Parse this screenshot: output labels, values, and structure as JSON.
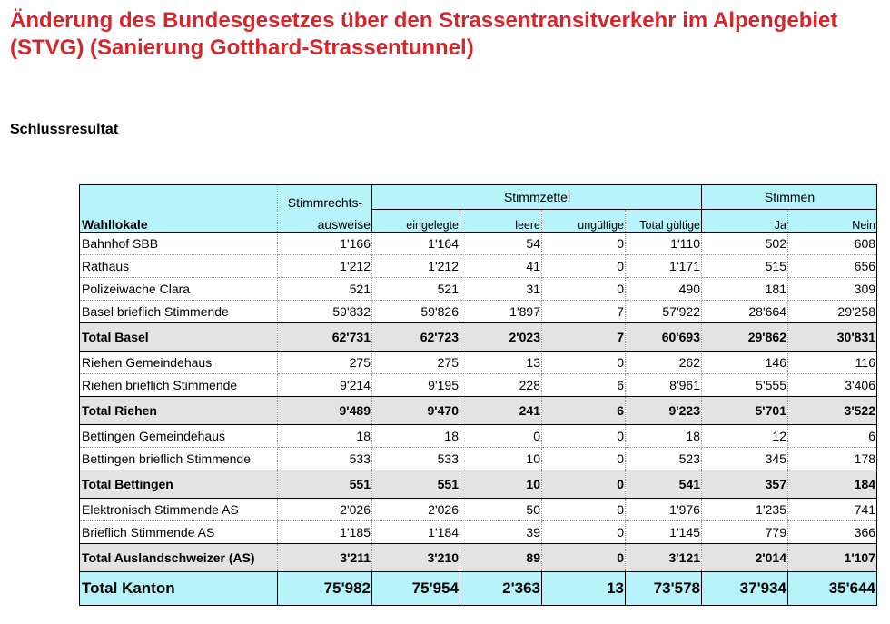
{
  "page": {
    "title": "Änderung des Bundesgesetzes über den Strassentransitverkehr im Alpengebiet (STVG) (Sanierung Gotthard-Strassentunnel)",
    "subtitle": "Schlussresultat"
  },
  "table": {
    "header": {
      "stimmrechts_top": "Stimmrechts-",
      "stimmrechts_bottom": "ausweise",
      "group_stimmzettel": "Stimmzettel",
      "group_stimmen": "Stimmen",
      "wahllokale": "Wahllokale",
      "eingelegte": "eingelegte",
      "leere": "leere",
      "ungueltige": "ungültige",
      "total_gueltige": "Total gültige",
      "ja": "Ja",
      "nein": "Nein"
    },
    "rows": [
      {
        "type": "normal",
        "label": "Bahnhof SBB",
        "values": [
          "1'166",
          "1'164",
          "54",
          "0",
          "1'110",
          "502",
          "608"
        ]
      },
      {
        "type": "normal",
        "label": "Rathaus",
        "values": [
          "1'212",
          "1'212",
          "41",
          "0",
          "1'171",
          "515",
          "656"
        ]
      },
      {
        "type": "normal",
        "label": "Polizeiwache Clara",
        "values": [
          "521",
          "521",
          "31",
          "0",
          "490",
          "181",
          "309"
        ]
      },
      {
        "type": "normal",
        "label": "Basel brieflich Stimmende",
        "values": [
          "59'832",
          "59'826",
          "1'897",
          "7",
          "57'922",
          "28'664",
          "29'258"
        ]
      },
      {
        "type": "total",
        "label": "Total Basel",
        "values": [
          "62'731",
          "62'723",
          "2'023",
          "7",
          "60'693",
          "29'862",
          "30'831"
        ]
      },
      {
        "type": "normal",
        "label": "Riehen Gemeindehaus",
        "values": [
          "275",
          "275",
          "13",
          "0",
          "262",
          "146",
          "116"
        ]
      },
      {
        "type": "normal",
        "label": "Riehen brieflich Stimmende",
        "values": [
          "9'214",
          "9'195",
          "228",
          "6",
          "8'961",
          "5'555",
          "3'406"
        ]
      },
      {
        "type": "total",
        "label": "Total Riehen",
        "values": [
          "9'489",
          "9'470",
          "241",
          "6",
          "9'223",
          "5'701",
          "3'522"
        ]
      },
      {
        "type": "normal",
        "label": "Bettingen Gemeindehaus",
        "values": [
          "18",
          "18",
          "0",
          "0",
          "18",
          "12",
          "6"
        ]
      },
      {
        "type": "normal",
        "label": "Bettingen brieflich Stimmende",
        "values": [
          "533",
          "533",
          "10",
          "0",
          "523",
          "345",
          "178"
        ]
      },
      {
        "type": "total",
        "label": "Total Bettingen",
        "values": [
          "551",
          "551",
          "10",
          "0",
          "541",
          "357",
          "184"
        ]
      },
      {
        "type": "normal",
        "label": "Elektronisch Stimmende AS",
        "values": [
          "2'026",
          "2'026",
          "50",
          "0",
          "1'976",
          "1'235",
          "741"
        ]
      },
      {
        "type": "normal",
        "label": "Brieflich Stimmende AS",
        "values": [
          "1'185",
          "1'184",
          "39",
          "0",
          "1'145",
          "779",
          "366"
        ]
      },
      {
        "type": "total",
        "label": "Total Auslandschweizer (AS)",
        "values": [
          "3'211",
          "3'210",
          "89",
          "0",
          "3'121",
          "2'014",
          "1'107"
        ]
      },
      {
        "type": "kanton",
        "label": "Total Kanton",
        "values": [
          "75'982",
          "75'954",
          "2'363",
          "13",
          "73'578",
          "37'934",
          "35'644"
        ]
      }
    ]
  },
  "colors": {
    "title": "#d6262b",
    "header_bg": "#b7f3fb",
    "total_bg": "#e3e3e3",
    "kanton_bg": "#b7f3fb"
  }
}
